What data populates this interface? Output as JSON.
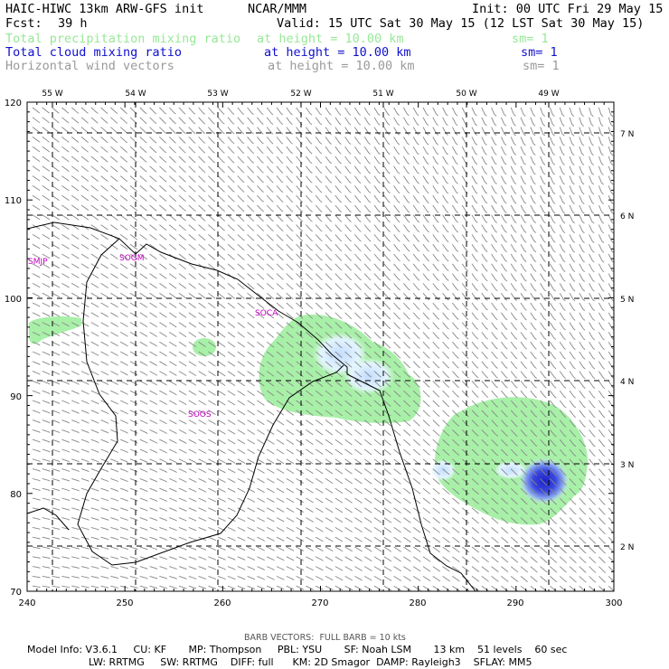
{
  "header": {
    "title": "HAIC-HIWC 13km ARW-GFS init",
    "org": "NCAR/MMM",
    "init": "Init: 00 UTC Fri 29 May 15",
    "fcst_label": "Fcst:",
    "fcst_value": "39 h",
    "valid": "Valid: 15 UTC Sat 30 May 15 (12 LST Sat 30 May 15)"
  },
  "fields": [
    {
      "name": "Total precipitation mixing ratio",
      "height": "at height = 10.00 km",
      "sm": "sm= 1",
      "color": "#96e896"
    },
    {
      "name": "Total cloud mixing ratio",
      "height": "at height = 10.00 km",
      "sm": "sm= 1",
      "color": "#1010d0"
    },
    {
      "name": "Horizontal wind vectors",
      "height": "at height = 10.00 km",
      "sm": "sm= 1",
      "color": "#9a9a9a"
    }
  ],
  "map": {
    "lon_labels": [
      "55 W",
      "54 W",
      "53 W",
      "52 W",
      "51 W",
      "50 W",
      "49 W"
    ],
    "lat_labels": [
      "7 N",
      "6 N",
      "5 N",
      "4 N",
      "3 N",
      "2 N"
    ],
    "x_ticks": [
      "240",
      "250",
      "260",
      "270",
      "280",
      "290",
      "300"
    ],
    "y_ticks": [
      "120",
      "110",
      "100",
      "90",
      "80",
      "70"
    ],
    "stations": [
      "SMJP",
      "SOGM",
      "SOCA",
      "SOOS"
    ],
    "station_color": "#c000c0",
    "precip_color": "#a8f0a8",
    "cloud_colors": [
      "#e8f8ff",
      "#c4ddff",
      "#5a6ee8",
      "#1c22c8"
    ]
  },
  "footer": {
    "barb": "BARB VECTORS:  FULL BARB = 10 kts",
    "line1": "Model Info: V3.6.1     CU: KF       MP: Thompson     PBL: YSU       SF: Noah LSM       13 km    51 levels    60 sec",
    "line2": "LW: RRTMG     SW: RRTMG    DIFF: full      KM: 2D Smagor  DAMP: Rayleigh3    SFLAY: MM5"
  }
}
